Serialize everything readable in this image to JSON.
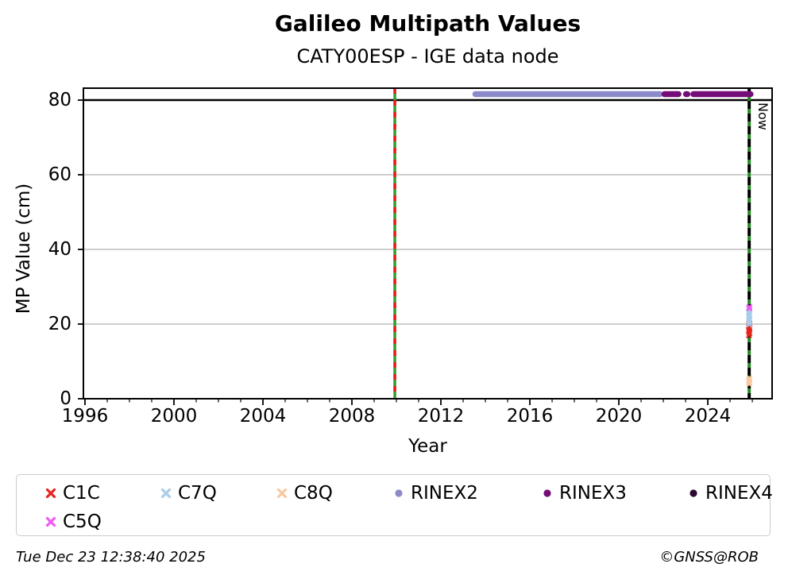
{
  "footer": {
    "timestamp": "Tue Dec 23 12:38:40 2025",
    "credit": "©GNSS@ROB"
  },
  "chart_data": {
    "type": "scatter",
    "title": "Galileo Multipath Values",
    "subtitle": "CATY00ESP - IGE data node",
    "xlabel": "Year",
    "ylabel": "MP Value (cm)",
    "xlim": [
      1995.93,
      2026.89
    ],
    "ylim": [
      0,
      83.2
    ],
    "xticks": [
      1996,
      2000,
      2004,
      2008,
      2012,
      2016,
      2020,
      2024
    ],
    "xtick_minor_step": 1,
    "yticks": [
      0,
      20,
      40,
      60,
      80
    ],
    "grid_y": [
      20,
      40,
      60
    ],
    "grid_color": "#b0b0b0",
    "hline_y": 80,
    "vlines": [
      {
        "name": "data-start-line",
        "x": 2009.93,
        "style": "solid_with_dash_overlay",
        "base_color": "#2f9b2f",
        "dash_color": "#ee1b1b",
        "label": ""
      },
      {
        "name": "now-line",
        "x": 2025.86,
        "style": "alternating_dash",
        "base_color": "#000000",
        "dash_color": "#228b22",
        "label": "Now"
      }
    ],
    "legend": {
      "position": "bottom",
      "items": [
        "C1C",
        "C7Q",
        "C8Q",
        "RINEX2",
        "RINEX3",
        "RINEX4",
        "C5Q"
      ]
    },
    "series": [
      {
        "name": "C1C",
        "marker": "x",
        "color": "#e8251f",
        "points": [
          [
            2025.85,
            17.0
          ],
          [
            2025.87,
            17.5
          ],
          [
            2025.86,
            18.0
          ],
          [
            2025.85,
            18.4
          ],
          [
            2025.87,
            18.8
          ],
          [
            2025.86,
            19.2
          ],
          [
            2025.85,
            19.6
          ],
          [
            2025.87,
            20.0
          ],
          [
            2025.86,
            20.3
          ]
        ]
      },
      {
        "name": "C7Q",
        "marker": "x",
        "color": "#a9cce9",
        "points": [
          [
            2025.86,
            19.9
          ],
          [
            2025.85,
            20.5
          ],
          [
            2025.87,
            21.0
          ],
          [
            2025.86,
            21.5
          ],
          [
            2025.85,
            22.0
          ],
          [
            2025.87,
            22.4
          ],
          [
            2025.86,
            22.9
          ],
          [
            2025.85,
            23.4
          ],
          [
            2025.87,
            23.9
          ],
          [
            2025.86,
            24.3
          ]
        ]
      },
      {
        "name": "C8Q",
        "marker": "x",
        "color": "#f6caa2",
        "points": [
          [
            2025.86,
            3.9
          ],
          [
            2025.87,
            4.3
          ],
          [
            2025.85,
            4.7
          ],
          [
            2025.86,
            5.1
          ],
          [
            2025.87,
            5.5
          ]
        ]
      },
      {
        "name": "RINEX2",
        "marker": "circle",
        "color": "#8d8ac9",
        "band_y": 81.6,
        "segments": [
          [
            2013.55,
            2021.85
          ]
        ],
        "points": []
      },
      {
        "name": "RINEX3",
        "marker": "circle",
        "color": "#740d78",
        "band_y": 81.6,
        "segments": [
          [
            2022.05,
            2022.25
          ],
          [
            2022.32,
            2022.68
          ],
          [
            2023.02,
            2023.08
          ],
          [
            2023.35,
            2025.92
          ]
        ],
        "points": []
      },
      {
        "name": "RINEX4",
        "marker": "circle",
        "color": "#2d0a33",
        "band_y": 81.6,
        "segments": [],
        "points": []
      },
      {
        "name": "C5Q",
        "marker": "x",
        "color": "#ef5af2",
        "points": [
          [
            2025.86,
            24.2
          ],
          [
            2025.87,
            24.6
          ]
        ]
      }
    ]
  }
}
